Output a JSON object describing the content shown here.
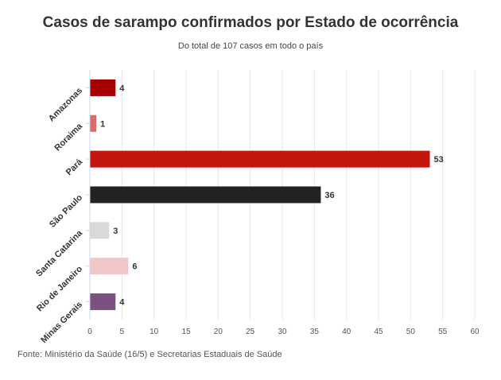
{
  "chart_data": {
    "type": "bar",
    "orientation": "horizontal",
    "title": "Casos de sarampo confirmados por Estado de ocorrência",
    "subtitle": "Do total de 107 casos em todo o país",
    "categories": [
      "Amazonas",
      "Roraima",
      "Pará",
      "São Paulo",
      "Santa Catarina",
      "Rio de Janeiro",
      "Minas Gerais"
    ],
    "values": [
      4,
      1,
      53,
      36,
      3,
      6,
      4
    ],
    "colors": [
      "#a60000",
      "#d96b6b",
      "#c4150f",
      "#222222",
      "#d9d9d9",
      "#f0c8c8",
      "#7a5282"
    ],
    "xticks": [
      "0",
      "5",
      "10",
      "15",
      "20",
      "25",
      "30",
      "35",
      "40",
      "45",
      "50",
      "55",
      "60"
    ],
    "xlim": [
      0,
      60
    ],
    "grid": true,
    "source": "Fonte: Ministério da Saúde (16/5) e Secretarias Estaduais de Saúde"
  }
}
